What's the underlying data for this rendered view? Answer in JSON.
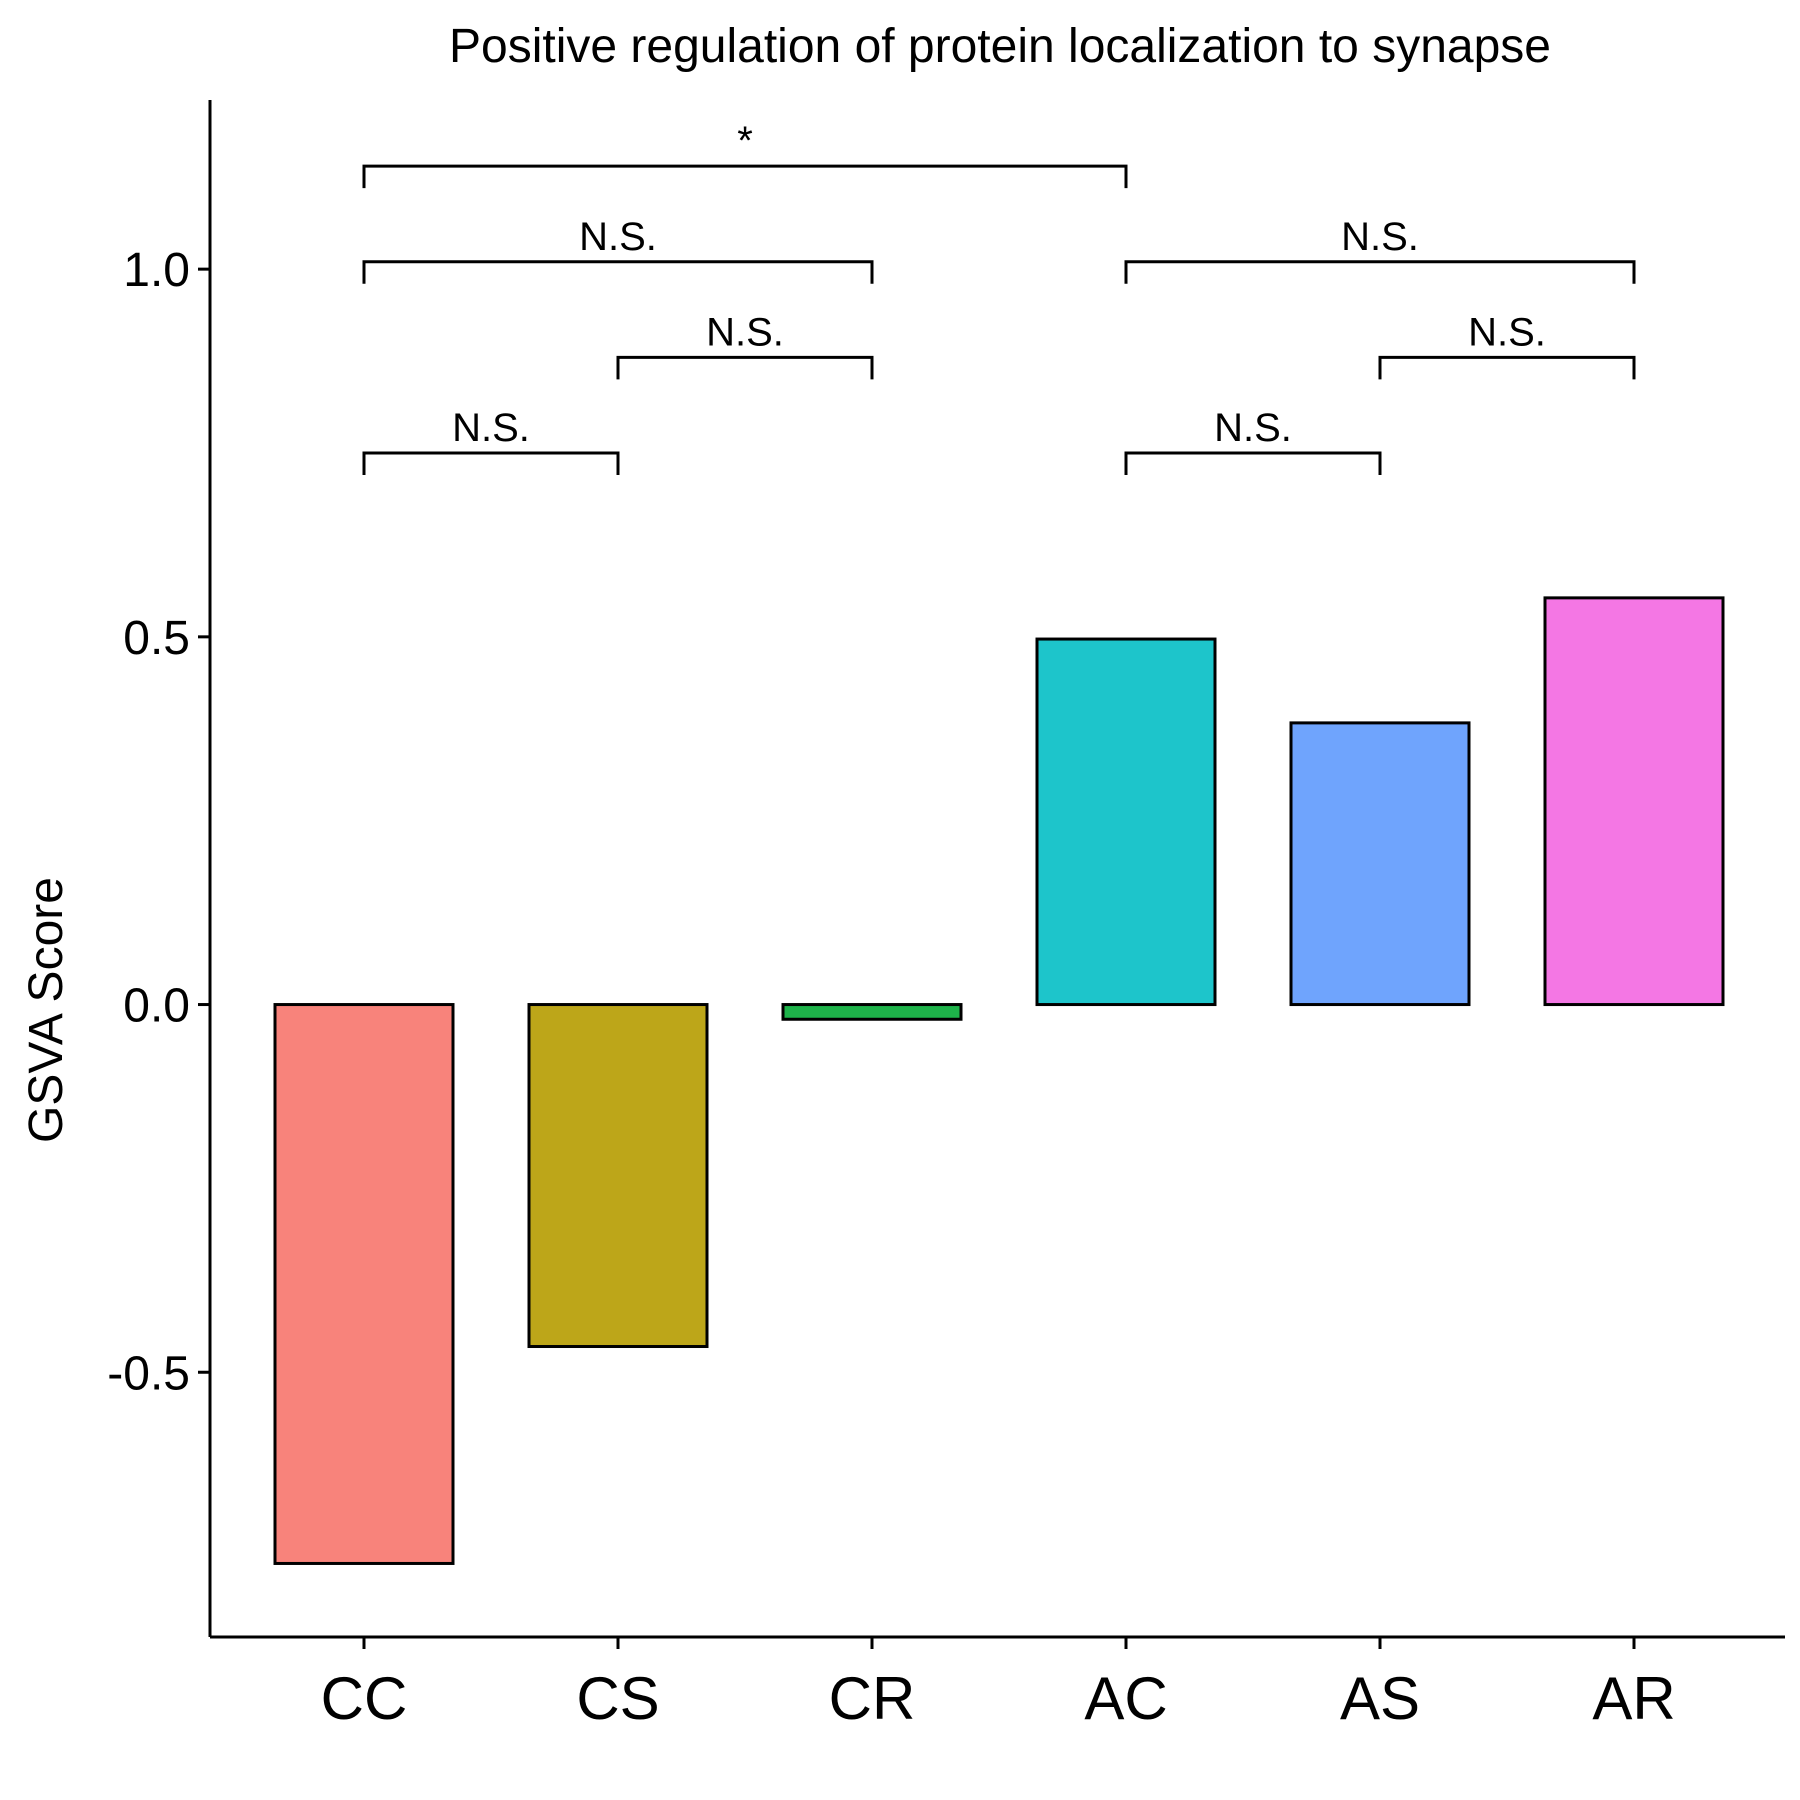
{
  "chart_data": {
    "type": "bar",
    "title": "Positive regulation of protein localization to synapse",
    "xlabel": "",
    "ylabel": "GSVA Score",
    "categories": [
      "CC",
      "CS",
      "CR",
      "AC",
      "AS",
      "AR"
    ],
    "values": [
      -0.76,
      -0.465,
      -0.02,
      0.497,
      0.383,
      0.553
    ],
    "colors": [
      "#F8837B",
      "#BDA619",
      "#1EB34A",
      "#1DC5CB",
      "#6FA4FD",
      "#F477E4"
    ],
    "ylim": [
      -0.86,
      1.23
    ],
    "yticks": [
      -0.5,
      0.0,
      0.5,
      1.0
    ],
    "ytick_labels": [
      "-0.5",
      "0.0",
      "0.5",
      "1.0"
    ],
    "grid": false,
    "legend": "none",
    "comparisons": [
      {
        "from": "CC",
        "to": "CS",
        "label": "N.S.",
        "y": 0.75
      },
      {
        "from": "CS",
        "to": "CR",
        "label": "N.S.",
        "y": 0.88
      },
      {
        "from": "CC",
        "to": "CR",
        "label": "N.S.",
        "y": 1.01
      },
      {
        "from": "AC",
        "to": "AS",
        "label": "N.S.",
        "y": 0.75
      },
      {
        "from": "AS",
        "to": "AR",
        "label": "N.S.",
        "y": 0.88
      },
      {
        "from": "AC",
        "to": "AR",
        "label": "N.S.",
        "y": 1.01
      },
      {
        "from": "CC",
        "to": "AC",
        "label": "*",
        "y": 1.14
      }
    ]
  }
}
